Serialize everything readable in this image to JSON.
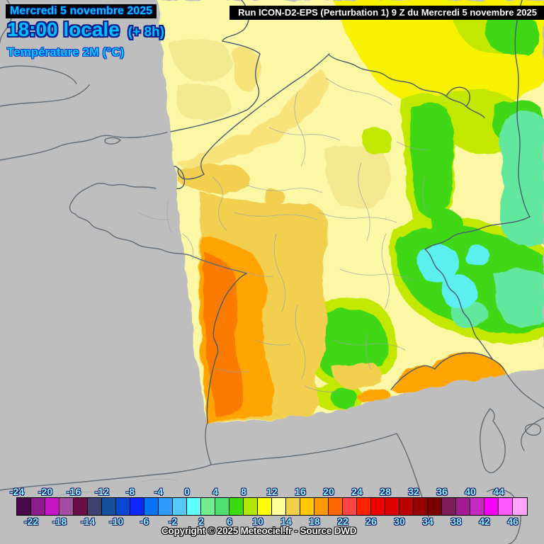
{
  "header": {
    "date_line": "Mercredi 5 novembre 2025",
    "time_line": "18:00 locale",
    "time_offset": "(+ 8h)",
    "variable_line": "Température 2M (°C)",
    "run_line": "Run ICON-D2-EPS (Perturbation 1) 9 Z du Mercredi 5 novembre 2025"
  },
  "footer": {
    "copyright": "Copyright © 2025 Meteociel.fr - Source DWD"
  },
  "legend": {
    "unit": "°C",
    "top_labels": [
      "-24",
      "-20",
      "-16",
      "-12",
      "-8",
      "-4",
      "0",
      "4",
      "8",
      "12",
      "16",
      "20",
      "24",
      "28",
      "32",
      "36",
      "40",
      "44"
    ],
    "bottom_labels": [
      "-22",
      "-18",
      "-14",
      "-10",
      "-6",
      "-2",
      "2",
      "6",
      "10",
      "14",
      "18",
      "22",
      "26",
      "30",
      "34",
      "38",
      "42",
      "46"
    ],
    "swatch_colors": [
      "#4B0A4B",
      "#8E1C8E",
      "#C714C7",
      "#A24FA2",
      "#6B0E45",
      "#3F3F70",
      "#14509E",
      "#0A46D2",
      "#0A28FF",
      "#0673FF",
      "#2E9BFA",
      "#55C8FA",
      "#5FFFFF",
      "#70EE90",
      "#50E070",
      "#3CDC0C",
      "#B0E600",
      "#FFFF00",
      "#FFFF9C",
      "#F0D048",
      "#FFC800",
      "#FF9900",
      "#FF6600",
      "#FF4444",
      "#FF2200",
      "#EE0000",
      "#DD0000",
      "#BB0000",
      "#990000",
      "#7A0000",
      "#801C5C",
      "#A11C8E",
      "#C32BC3",
      "#FA00FA",
      "#FF5AFF",
      "#FFA3FF"
    ]
  },
  "text_colors": {
    "title_cyan": "#00C4FF",
    "time_cyan": "#00BFFF",
    "variable_cyan": "#00CCFF",
    "outline_navy": "#0A1E8C",
    "legend_label_cyan": "#8FF2F2",
    "run_bar_text": "#FFFFFF",
    "copyright_text": "#FFFFFF"
  },
  "map_palette": {
    "bg_grey": "#BEBEBE",
    "pale_yellow": "#FBF7A5",
    "deep_pale": "#F2E88F",
    "light_gold": "#F8E27A",
    "gold": "#F2CF4F",
    "yellow": "#F6F200",
    "yellow_green": "#C2E800",
    "green": "#3FD815",
    "spring_green": "#62E89E",
    "cyan": "#5CEFEF",
    "orange": "#FFA405",
    "deep_orange": "#FB7A00",
    "coast_line": "#4A5A6B",
    "outer_coast": "#5E6A75",
    "dept_line": "#9AA2AA"
  }
}
